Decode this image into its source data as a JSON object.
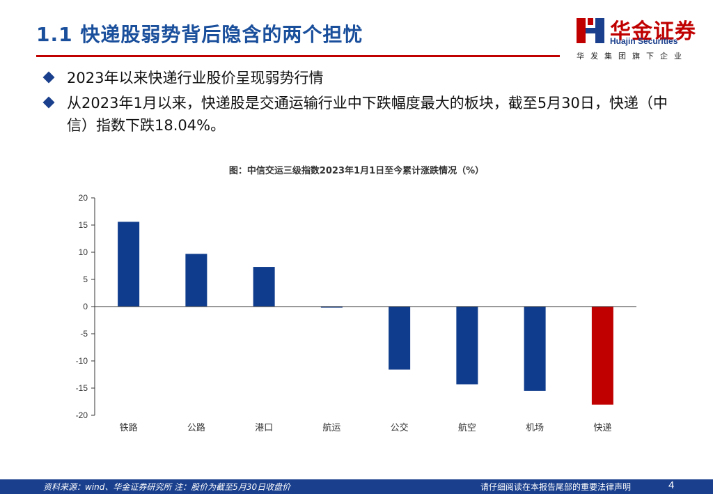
{
  "header": {
    "title": "1.1 快递股弱势背后隐含的两个担忧"
  },
  "logo": {
    "name_cn": "华金证券",
    "name_en": "Huajin Securities",
    "tagline": "华发集团旗下企业",
    "colors": {
      "red": "#c00000",
      "blue": "#1a3f8c"
    }
  },
  "bullets": [
    "2023年以来快递行业股价呈现弱势行情",
    "从2023年1月以来，快递股是交通运输行业中下跌幅度最大的板块，截至5月30日，快递（中信）指数下跌18.04%。"
  ],
  "chart_data": {
    "type": "bar",
    "title": "图：中信交运三级指数2023年1月1日至今累计涨跌情况（%）",
    "categories": [
      "铁路",
      "公路",
      "港口",
      "航运",
      "公交",
      "航空",
      "机场",
      "快递"
    ],
    "values": [
      15.6,
      9.7,
      7.3,
      -0.2,
      -11.6,
      -14.3,
      -15.5,
      -18.04
    ],
    "ylim": [
      -20,
      20
    ],
    "yticks": [
      20,
      15,
      10,
      5,
      0,
      -5,
      -10,
      -15,
      -20
    ],
    "xlabel": "",
    "ylabel": "",
    "colors": {
      "default": "#0f3c8c",
      "highlight": "#c00000",
      "highlight_category": "快递"
    }
  },
  "footer": {
    "source": "资料来源：wind、华金证券研究所 注：股价为截至5月30日收盘价",
    "legal": "请仔细阅读在本报告尾部的重要法律声明",
    "page_number": "4"
  }
}
